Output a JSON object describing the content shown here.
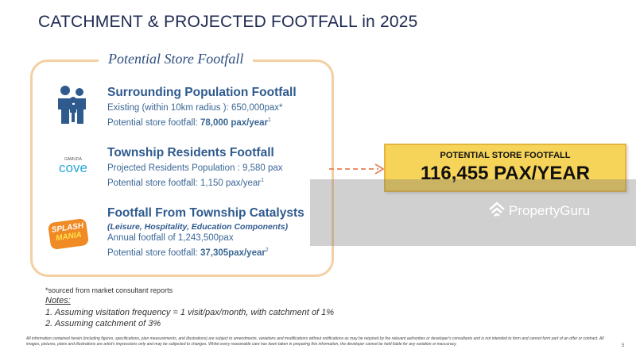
{
  "title": "CATCHMENT & PROJECTED FOOTFALL in 2025",
  "panel": {
    "title": "Potential Store Footfall",
    "sections": [
      {
        "heading": "Surrounding Population Footfall",
        "lines": [
          "Existing (within 10km radius ): 650,000pax*"
        ],
        "footfall": {
          "label": "Potential store footfall:",
          "value": "78,000 pax/year",
          "note": "1"
        }
      },
      {
        "logo": [
          "GAMUDA",
          "cove"
        ],
        "heading": "Township Residents Footfall",
        "lines": [
          "Projected Residents Population : 9,580 pax"
        ],
        "footfall": {
          "label": "Potential store footfall:",
          "value": "1,150 pax/year",
          "note": "1"
        }
      },
      {
        "logo": [
          "SPLASH",
          "MANIA"
        ],
        "heading": "Footfall From Township Catalysts",
        "subheading": "(Leisure, Hospitality, Education Components)",
        "lines": [
          "Annual footfall of 1,243,500pax"
        ],
        "footfall": {
          "label": "Potential store footfall:",
          "value": "37,305pax/year",
          "note": "2"
        }
      }
    ]
  },
  "result": {
    "label": "POTENTIAL STORE FOOTFALL",
    "value": "116,455 PAX/YEAR"
  },
  "source": "*sourced from market consultant reports",
  "notes": {
    "title": "Notes:",
    "items": [
      "1. Assuming visitation frequency = 1 visit/pax/month, with catchment of 1%",
      "2. Assuming catchment of 3%"
    ]
  },
  "disclaimer": "All information contained herein (including figures, specifications, plan measurements, and illustrations) are subject to amendments, variations and modifications without notifications as may be required by the relevant authorities or developer's consultants and is not intended to form and cannot form part of an offer or contract. All images, pictures, plans and illustrations are artist's impressions only and may be subjected to changes. Whilst every reasonable care has been taken in preparing this information, the developer cannot be held liable for any variation or inaccuracy.",
  "page": "5",
  "watermark": "PropertyGuru"
}
